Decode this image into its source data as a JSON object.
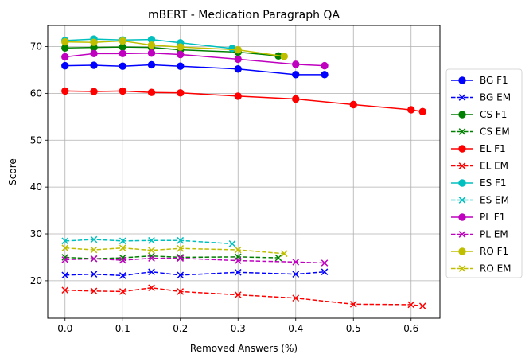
{
  "chart_data": {
    "type": "line",
    "title": "mBERT - Medication Paragraph QA",
    "xlabel": "Removed Answers (%)",
    "ylabel": "Score",
    "xlim": [
      -0.03,
      0.65
    ],
    "ylim": [
      12,
      74.5
    ],
    "xticks": [
      0.0,
      0.1,
      0.2,
      0.3,
      0.4,
      0.5,
      0.6
    ],
    "xtick_labels": [
      "0.0",
      "0.1",
      "0.2",
      "0.3",
      "0.4",
      "0.5",
      "0.6"
    ],
    "yticks": [
      20,
      30,
      40,
      50,
      60,
      70
    ],
    "ytick_labels": [
      "20",
      "30",
      "40",
      "50",
      "60",
      "70"
    ],
    "grid": true,
    "legend_position": "outside-right",
    "series": [
      {
        "name": "BG F1",
        "color": "#0000ff",
        "style": "solid",
        "marker": "circle",
        "x": [
          0.0,
          0.05,
          0.1,
          0.15,
          0.2,
          0.3,
          0.4,
          0.45
        ],
        "y": [
          65.9,
          66.0,
          65.8,
          66.1,
          65.8,
          65.2,
          64.0,
          64.0
        ]
      },
      {
        "name": "BG EM",
        "color": "#0000ff",
        "style": "dashed",
        "marker": "x",
        "x": [
          0.0,
          0.05,
          0.1,
          0.15,
          0.2,
          0.3,
          0.4,
          0.45
        ],
        "y": [
          21.2,
          21.4,
          21.1,
          21.9,
          21.2,
          21.8,
          21.4,
          21.9
        ]
      },
      {
        "name": "CS F1",
        "color": "#008000",
        "style": "solid",
        "marker": "circle",
        "x": [
          0.0,
          0.05,
          0.1,
          0.15,
          0.2,
          0.3,
          0.37
        ],
        "y": [
          69.7,
          69.8,
          69.9,
          69.8,
          69.3,
          68.8,
          68.0
        ]
      },
      {
        "name": "CS EM",
        "color": "#008000",
        "style": "dashed",
        "marker": "x",
        "x": [
          0.0,
          0.05,
          0.1,
          0.15,
          0.2,
          0.3,
          0.37
        ],
        "y": [
          25.0,
          24.7,
          24.9,
          25.3,
          25.0,
          25.1,
          24.9
        ]
      },
      {
        "name": "EL F1",
        "color": "#ff0000",
        "style": "solid",
        "marker": "circle",
        "x": [
          0.0,
          0.05,
          0.1,
          0.15,
          0.2,
          0.3,
          0.4,
          0.5,
          0.6,
          0.62
        ],
        "y": [
          60.5,
          60.4,
          60.5,
          60.2,
          60.1,
          59.4,
          58.8,
          57.6,
          56.5,
          56.1
        ]
      },
      {
        "name": "EL EM",
        "color": "#ff0000",
        "style": "dashed",
        "marker": "x",
        "x": [
          0.0,
          0.05,
          0.1,
          0.15,
          0.2,
          0.3,
          0.4,
          0.5,
          0.6,
          0.62
        ],
        "y": [
          18.0,
          17.8,
          17.7,
          18.5,
          17.7,
          17.0,
          16.3,
          15.0,
          14.9,
          14.6
        ]
      },
      {
        "name": "ES F1",
        "color": "#00bfbf",
        "style": "solid",
        "marker": "circle",
        "x": [
          0.0,
          0.05,
          0.1,
          0.15,
          0.2,
          0.29
        ],
        "y": [
          71.3,
          71.6,
          71.4,
          71.5,
          70.8,
          69.6
        ]
      },
      {
        "name": "ES EM",
        "color": "#00bfbf",
        "style": "dashed",
        "marker": "x",
        "x": [
          0.0,
          0.05,
          0.1,
          0.15,
          0.2,
          0.29
        ],
        "y": [
          28.5,
          28.8,
          28.5,
          28.6,
          28.6,
          27.9
        ]
      },
      {
        "name": "PL F1",
        "color": "#bf00bf",
        "style": "solid",
        "marker": "circle",
        "x": [
          0.0,
          0.05,
          0.1,
          0.15,
          0.2,
          0.3,
          0.4,
          0.45
        ],
        "y": [
          67.8,
          68.5,
          68.5,
          68.6,
          68.3,
          67.3,
          66.2,
          65.9
        ]
      },
      {
        "name": "PL EM",
        "color": "#bf00bf",
        "style": "dashed",
        "marker": "x",
        "x": [
          0.0,
          0.05,
          0.1,
          0.15,
          0.2,
          0.3,
          0.4,
          0.45
        ],
        "y": [
          24.5,
          24.7,
          24.4,
          24.8,
          24.8,
          24.3,
          24.0,
          23.8
        ]
      },
      {
        "name": "RO F1",
        "color": "#bfbf00",
        "style": "solid",
        "marker": "circle",
        "x": [
          0.0,
          0.05,
          0.1,
          0.15,
          0.2,
          0.3,
          0.38
        ],
        "y": [
          71.0,
          70.9,
          71.2,
          70.3,
          69.9,
          69.3,
          67.9
        ]
      },
      {
        "name": "RO EM",
        "color": "#bfbf00",
        "style": "dashed",
        "marker": "x",
        "x": [
          0.0,
          0.05,
          0.1,
          0.15,
          0.2,
          0.3,
          0.38
        ],
        "y": [
          27.0,
          26.6,
          27.0,
          26.5,
          26.9,
          26.6,
          25.8
        ]
      }
    ]
  }
}
